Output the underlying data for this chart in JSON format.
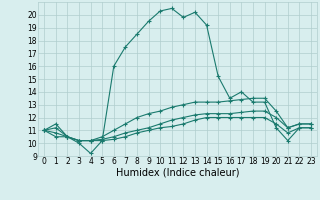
{
  "x": [
    0,
    1,
    2,
    3,
    4,
    5,
    6,
    7,
    8,
    9,
    10,
    11,
    12,
    13,
    14,
    15,
    16,
    17,
    18,
    19,
    20,
    21,
    22,
    23
  ],
  "line1": [
    11,
    11.5,
    10.5,
    10.0,
    9.2,
    10.2,
    16.0,
    17.5,
    18.5,
    19.5,
    20.3,
    20.5,
    19.8,
    20.2,
    19.2,
    15.2,
    13.5,
    14.0,
    13.2,
    13.2,
    11.2,
    10.2,
    11.2,
    11.2
  ],
  "line2": [
    11,
    11.2,
    10.5,
    10.2,
    10.2,
    10.5,
    11.0,
    11.5,
    12.0,
    12.3,
    12.5,
    12.8,
    13.0,
    13.2,
    13.2,
    13.2,
    13.3,
    13.4,
    13.5,
    13.5,
    12.5,
    11.2,
    11.5,
    11.5
  ],
  "line3": [
    11,
    10.8,
    10.5,
    10.2,
    10.2,
    10.3,
    10.5,
    10.8,
    11.0,
    11.2,
    11.5,
    11.8,
    12.0,
    12.2,
    12.3,
    12.3,
    12.3,
    12.4,
    12.5,
    12.5,
    12.0,
    11.2,
    11.5,
    11.5
  ],
  "line4": [
    11,
    10.5,
    10.5,
    10.2,
    10.2,
    10.2,
    10.3,
    10.5,
    10.8,
    11.0,
    11.2,
    11.3,
    11.5,
    11.8,
    12.0,
    12.0,
    12.0,
    12.0,
    12.0,
    12.0,
    11.5,
    10.8,
    11.2,
    11.2
  ],
  "line_color": "#1a7a6e",
  "marker": "+",
  "bg_color": "#d8eeee",
  "grid_color": "#b0cece",
  "ylim": [
    9,
    21
  ],
  "xlim": [
    -0.5,
    23.5
  ],
  "xlabel": "Humidex (Indice chaleur)",
  "yticks": [
    9,
    10,
    11,
    12,
    13,
    14,
    15,
    16,
    17,
    18,
    19,
    20
  ],
  "xticks": [
    0,
    1,
    2,
    3,
    4,
    5,
    6,
    7,
    8,
    9,
    10,
    11,
    12,
    13,
    14,
    15,
    16,
    17,
    18,
    19,
    20,
    21,
    22,
    23
  ],
  "tick_fontsize": 5.5,
  "xlabel_fontsize": 7
}
